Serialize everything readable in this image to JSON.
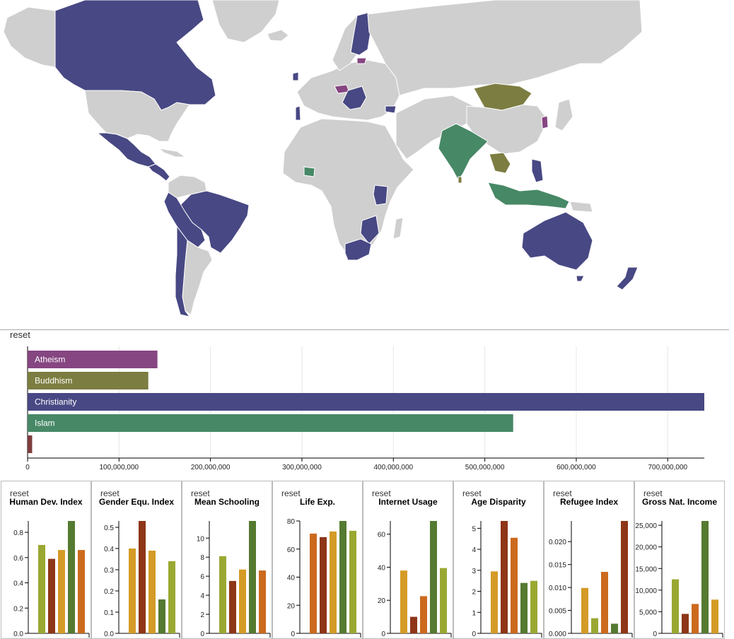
{
  "map": {
    "reset_label": "",
    "colors": {
      "Atheism": "#864681",
      "Buddhism": "#7c7d40",
      "Christianity": "#484884",
      "Islam": "#478866",
      "Judaism": "#7e3d3e",
      "none": "#cfcfcf",
      "border": "#ffffff"
    }
  },
  "religion_chart": {
    "reset_label": "reset",
    "chart_data": {
      "type": "bar",
      "orientation": "horizontal",
      "categories": [
        "Atheism",
        "Buddhism",
        "Christianity",
        "Islam",
        "Judaism"
      ],
      "values": [
        142000000,
        132000000,
        740000000,
        531000000,
        5000000
      ],
      "colors": [
        "#864681",
        "#7c7d40",
        "#484884",
        "#478866",
        "#7e3d3e"
      ],
      "xlim": [
        0,
        740000000
      ],
      "ticks": [
        0,
        100000000,
        200000000,
        300000000,
        400000000,
        500000000,
        600000000,
        700000000
      ],
      "tick_labels": [
        "0",
        "100,000,000",
        "200,000,000",
        "300,000,000",
        "400,000,000",
        "500,000,000",
        "600,000,000",
        "700,000,000"
      ],
      "grid": true
    }
  },
  "indicator_panels": [
    {
      "reset_label": "reset",
      "title": "Human Dev. Index",
      "chart_data": {
        "type": "bar",
        "values": [
          0.7,
          0.59,
          0.66,
          0.89,
          0.66
        ],
        "colors": [
          "#9aa832",
          "#8e3617",
          "#d49b27",
          "#557a31",
          "#cc6a1e"
        ],
        "ylim": [
          0,
          0.89
        ],
        "ticks": [
          0,
          0.2,
          0.4,
          0.6,
          0.8
        ],
        "tick_labels": [
          "0.0",
          "0.2",
          "0.4",
          "0.6",
          "0.8"
        ]
      }
    },
    {
      "reset_label": "reset",
      "title": "Gender Equ. Index",
      "chart_data": {
        "type": "bar",
        "values": [
          0.4,
          0.53,
          0.39,
          0.16,
          0.34
        ],
        "colors": [
          "#d49b27",
          "#8e3617",
          "#d49b27",
          "#557a31",
          "#9aa832"
        ],
        "ylim": [
          0,
          0.53
        ],
        "ticks": [
          0,
          0.1,
          0.2,
          0.3,
          0.4,
          0.5
        ],
        "tick_labels": [
          "0.0",
          "0.1",
          "0.2",
          "0.3",
          "0.4",
          "0.5"
        ]
      }
    },
    {
      "reset_label": "reset",
      "title": "Mean Schooling",
      "chart_data": {
        "type": "bar",
        "values": [
          8.1,
          5.5,
          6.7,
          11.8,
          6.6
        ],
        "colors": [
          "#9aa832",
          "#8e3617",
          "#d49b27",
          "#557a31",
          "#cc6a1e"
        ],
        "ylim": [
          0,
          11.8
        ],
        "ticks": [
          0,
          2,
          4,
          6,
          8,
          10
        ],
        "tick_labels": [
          "0",
          "2",
          "4",
          "6",
          "8",
          "10"
        ]
      }
    },
    {
      "reset_label": "reset",
      "title": "Life Exp.",
      "chart_data": {
        "type": "bar",
        "values": [
          71,
          68.5,
          72.5,
          80,
          73
        ],
        "colors": [
          "#cc6a1e",
          "#8e3617",
          "#d49b27",
          "#557a31",
          "#9aa832"
        ],
        "ylim": [
          0,
          80
        ],
        "ticks": [
          0,
          20,
          40,
          60,
          80
        ],
        "tick_labels": [
          "0",
          "20",
          "40",
          "60",
          "80"
        ]
      }
    },
    {
      "reset_label": "reset",
      "title": "Internet Usage",
      "chart_data": {
        "type": "bar",
        "values": [
          38,
          10,
          22.5,
          68,
          39.5
        ],
        "colors": [
          "#d49b27",
          "#8e3617",
          "#cc6a1e",
          "#557a31",
          "#9aa832"
        ],
        "ylim": [
          0,
          68
        ],
        "ticks": [
          0,
          20,
          40,
          60
        ],
        "tick_labels": [
          "0",
          "20",
          "40",
          "60"
        ]
      }
    },
    {
      "reset_label": "reset",
      "title": "Age Disparity",
      "chart_data": {
        "type": "bar",
        "values": [
          2.95,
          5.35,
          4.55,
          2.4,
          2.5
        ],
        "colors": [
          "#d49b27",
          "#8e3617",
          "#cc6a1e",
          "#557a31",
          "#9aa832"
        ],
        "ylim": [
          0,
          5.35
        ],
        "ticks": [
          0,
          1,
          2,
          3,
          4,
          5
        ],
        "tick_labels": [
          "0",
          "1",
          "2",
          "3",
          "4",
          "5"
        ]
      }
    },
    {
      "reset_label": "reset",
      "title": "Refugee Index",
      "chart_data": {
        "type": "bar",
        "values": [
          0.0099,
          0.0033,
          0.0134,
          0.0021,
          0.0245
        ],
        "colors": [
          "#d49b27",
          "#9aa832",
          "#cc6a1e",
          "#557a31",
          "#8e3617"
        ],
        "ylim": [
          0,
          0.0245
        ],
        "ticks": [
          0,
          0.005,
          0.01,
          0.015,
          0.02
        ],
        "tick_labels": [
          "0.000",
          "0.005",
          "0.010",
          "0.015",
          "0.020"
        ]
      }
    },
    {
      "reset_label": "reset",
      "title": "Gross Nat. Income",
      "chart_data": {
        "type": "bar",
        "values": [
          12500,
          4500,
          6800,
          26000,
          7800
        ],
        "colors": [
          "#9aa832",
          "#8e3617",
          "#cc6a1e",
          "#557a31",
          "#d49b27"
        ],
        "ylim": [
          0,
          26000
        ],
        "ticks": [
          0,
          5000,
          10000,
          15000,
          20000,
          25000
        ],
        "tick_labels": [
          "0",
          "5,000",
          "10,000",
          "15,000",
          "20,000",
          "25,000"
        ]
      }
    }
  ]
}
